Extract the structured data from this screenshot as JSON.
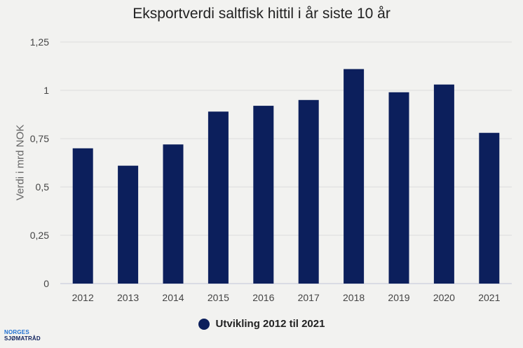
{
  "chart_data": {
    "type": "bar",
    "title": "Eksportverdi saltfisk hittil i år siste 10 år",
    "ylabel": "Verdi i mrd NOK",
    "xlabel": "",
    "categories": [
      "2012",
      "2013",
      "2014",
      "2015",
      "2016",
      "2017",
      "2018",
      "2019",
      "2020",
      "2021"
    ],
    "series": [
      {
        "name": "Utvikling 2012 til 2021",
        "values": [
          0.7,
          0.61,
          0.72,
          0.89,
          0.92,
          0.95,
          1.11,
          0.99,
          1.03,
          0.78
        ]
      }
    ],
    "ylim": [
      0,
      1.25
    ],
    "yticks": [
      0,
      0.25,
      0.5,
      0.75,
      1,
      1.25
    ],
    "ytick_labels": [
      "0",
      "0,25",
      "0,5",
      "0,75",
      "1",
      "1,25"
    ],
    "grid": true,
    "legend_position": "bottom"
  },
  "colors": {
    "bar": "#0c1f5c",
    "grid": "#dcdcdc",
    "axis": "#c0c4d8",
    "tick_text": "#444444",
    "background": "#f2f2f0"
  },
  "logo": {
    "line1": "NORGES",
    "line2": "SJØMATRÅD"
  }
}
